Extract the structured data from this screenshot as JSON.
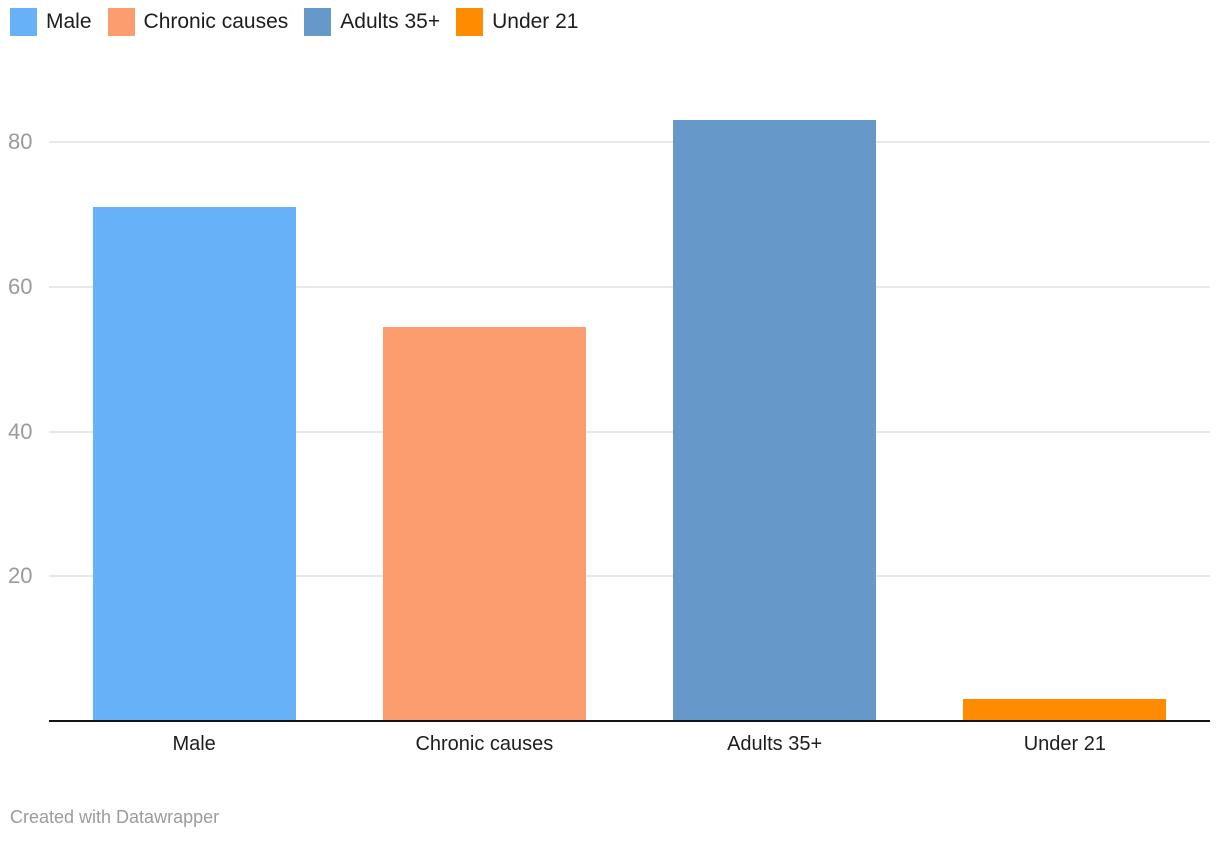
{
  "chart_data": {
    "type": "bar",
    "categories": [
      "Male",
      "Chronic causes",
      "Adults 35+",
      "Under 21"
    ],
    "values": [
      71,
      54.5,
      83,
      3
    ],
    "colors": [
      "#66b1f8",
      "#fc9d6f",
      "#6699ca",
      "#ff8c00"
    ],
    "title": "",
    "xlabel": "",
    "ylabel": "",
    "ylim": [
      0,
      85.8
    ],
    "yticks": [
      20,
      40,
      60,
      80
    ],
    "grid": true,
    "legend_position": "top-left",
    "legend": [
      {
        "label": "Male",
        "color": "#66b1f8"
      },
      {
        "label": "Chronic causes",
        "color": "#fc9d6f"
      },
      {
        "label": "Adults 35+",
        "color": "#6699ca"
      },
      {
        "label": "Under 21",
        "color": "#ff8c00"
      }
    ]
  },
  "footer": {
    "credit": "Created with Datawrapper"
  },
  "colors": {
    "background": "#ffffff",
    "grid": "#e8e8e8",
    "axis": "#141416",
    "tick_label": "#9a9a9a",
    "category_label": "#1d1d1d",
    "footer_text": "#9b9b9b"
  }
}
